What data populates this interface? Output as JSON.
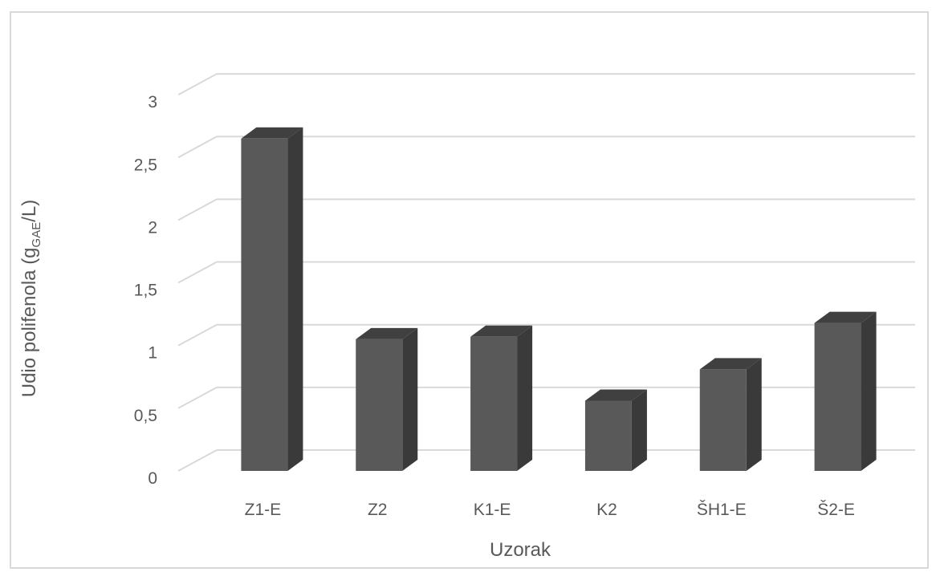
{
  "chart_data": {
    "type": "bar",
    "style": "3d-column",
    "categories": [
      "Z1-E",
      "Z2",
      "K1-E",
      "K2",
      "ŠH1-E",
      "Š2-E"
    ],
    "values": [
      2.65,
      1.05,
      1.07,
      0.56,
      0.81,
      1.18
    ],
    "ylim": [
      0,
      3
    ],
    "yticks": [
      0,
      0.5,
      1,
      1.5,
      2,
      2.5,
      3
    ],
    "ytick_labels": [
      "0",
      "0,5",
      "1",
      "1,5",
      "2",
      "2,5",
      "3"
    ],
    "xlabel": "Uzorak",
    "ylabel": {
      "main": "Udio polifenola (g",
      "subscript": "GAE",
      "suffix": "/L)"
    },
    "grid": true,
    "legend": "none",
    "colors": {
      "bar_front": "#595959",
      "bar_top": "#404040",
      "bar_side": "#3a3a3a",
      "gridline": "#d9d9d9",
      "text": "#595959"
    }
  }
}
